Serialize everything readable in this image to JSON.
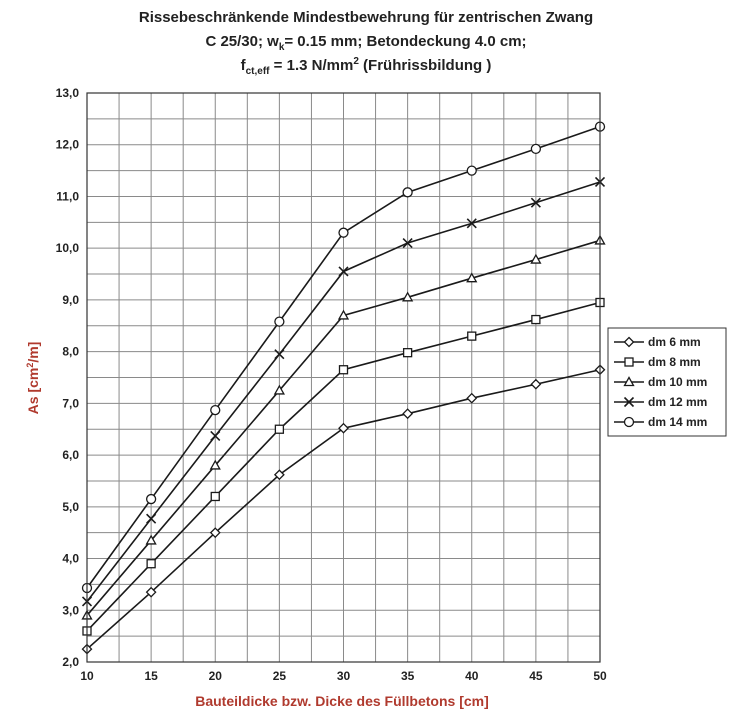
{
  "title": {
    "line1": "Rissebeschränkende Mindestbewehrung für zentrischen Zwang",
    "line2_a": "C 25/30; w",
    "line2_sub": "k",
    "line2_b": "= 0.15 mm; Betondeckung 4.0 cm;",
    "line3_a": "f",
    "line3_sub": "ct,eff",
    "line3_b": " = 1.3 N/mm",
    "line3_sup": "2",
    "line3_c": " (Frührissbildung )"
  },
  "chart_data": {
    "type": "line",
    "xlabel": "Bauteildicke bzw. Dicke des Füllbetons [cm]",
    "ylabel_main": "As [cm",
    "ylabel_sup": "2",
    "ylabel_end": "/m]",
    "x": [
      10,
      15,
      20,
      25,
      30,
      35,
      40,
      45,
      50
    ],
    "xlim": [
      10,
      50
    ],
    "ylim": [
      2.0,
      13.0
    ],
    "xticks": [
      "10",
      "15",
      "20",
      "25",
      "30",
      "35",
      "40",
      "45",
      "50"
    ],
    "yticks": [
      "2,0",
      "3,0",
      "4,0",
      "5,0",
      "6,0",
      "7,0",
      "8,0",
      "9,0",
      "10,0",
      "11,0",
      "12,0",
      "13,0"
    ],
    "grid": true,
    "legend_position": "right",
    "series": [
      {
        "name": "dm 6 mm",
        "marker": "diamond",
        "values": [
          2.25,
          3.35,
          4.5,
          5.62,
          6.52,
          6.8,
          7.1,
          7.37,
          7.65
        ]
      },
      {
        "name": "dm 8 mm",
        "marker": "square",
        "values": [
          2.6,
          3.9,
          5.2,
          6.5,
          7.65,
          7.98,
          8.3,
          8.62,
          8.95
        ]
      },
      {
        "name": "dm 10 mm",
        "marker": "triangle",
        "values": [
          2.9,
          4.35,
          5.8,
          7.25,
          8.7,
          9.05,
          9.42,
          9.78,
          10.15
        ]
      },
      {
        "name": "dm 12 mm",
        "marker": "x",
        "values": [
          3.17,
          4.77,
          6.37,
          7.95,
          9.55,
          10.1,
          10.48,
          10.88,
          11.28
        ]
      },
      {
        "name": "dm 14 mm",
        "marker": "circle",
        "values": [
          3.43,
          5.15,
          6.87,
          8.58,
          10.3,
          11.08,
          11.5,
          11.92,
          12.35
        ]
      }
    ],
    "line_color": "#1a1a1a",
    "grid_color": "#8a8a8a",
    "axis_label_color": "#b03a2e"
  }
}
